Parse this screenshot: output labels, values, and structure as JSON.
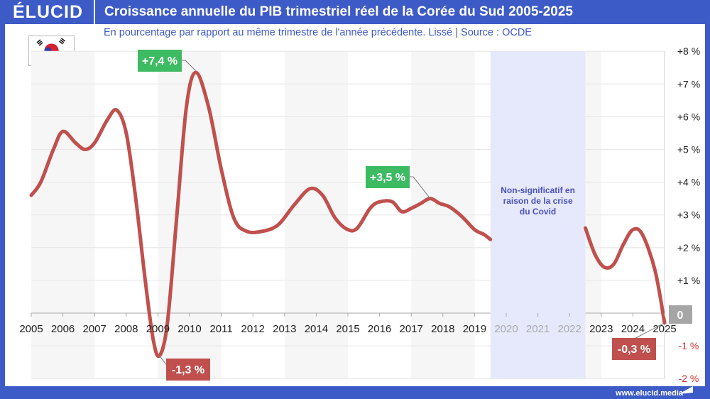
{
  "header": {
    "logo": "ÉLUCID",
    "title": "Croissance annuelle du PIB trimestriel réel de la Corée du Sud 2005-2025"
  },
  "subtitle": "En pourcentage par rapport au même trimestre de l'année précédente. Lissé  |  Source : OCDE",
  "footer": "www.elucid.media",
  "colors": {
    "brand": "#3d5bc7",
    "line": "#c0504d",
    "positive": "#3dbb63",
    "negative": "#c0504d",
    "covid": "#e6e8fb"
  },
  "chart_data": {
    "type": "line",
    "title": "Croissance annuelle du PIB trimestriel réel de la Corée du Sud 2005-2025",
    "xlim": [
      2005,
      2025
    ],
    "ylim": [
      -2,
      8
    ],
    "x_ticks": [
      "2005",
      "2006",
      "2007",
      "2008",
      "2009",
      "2010",
      "2011",
      "2012",
      "2013",
      "2014",
      "2015",
      "2016",
      "2017",
      "2018",
      "2019",
      "2020",
      "2021",
      "2022",
      "2023",
      "2024",
      "2025"
    ],
    "y_ticks": [
      {
        "v": 8,
        "label": "+8 %"
      },
      {
        "v": 7,
        "label": "+7 %"
      },
      {
        "v": 6,
        "label": "+6 %"
      },
      {
        "v": 5,
        "label": "+5 %"
      },
      {
        "v": 4,
        "label": "+4 %"
      },
      {
        "v": 3,
        "label": "+3 %"
      },
      {
        "v": 2,
        "label": "+2 %"
      },
      {
        "v": 1,
        "label": "+1 %"
      },
      {
        "v": 0,
        "label": "0"
      },
      {
        "v": -1,
        "label": "-1 %"
      },
      {
        "v": -2,
        "label": "-2 %"
      }
    ],
    "covid_band": {
      "from": 2019.5,
      "to": 2022.5,
      "label": [
        "Non-significatif en",
        "raison de la crise",
        "du Covid"
      ]
    },
    "series": [
      {
        "name": "2005-2019",
        "points": [
          [
            2005,
            3.6
          ],
          [
            2005.3,
            4.0
          ],
          [
            2005.7,
            5.0
          ],
          [
            2006,
            5.55
          ],
          [
            2006.4,
            5.2
          ],
          [
            2006.7,
            5.0
          ],
          [
            2007,
            5.2
          ],
          [
            2007.4,
            5.9
          ],
          [
            2007.7,
            6.2
          ],
          [
            2008,
            5.5
          ],
          [
            2008.3,
            3.5
          ],
          [
            2008.6,
            1.0
          ],
          [
            2008.85,
            -0.8
          ],
          [
            2009.05,
            -1.3
          ],
          [
            2009.3,
            -0.3
          ],
          [
            2009.6,
            3.0
          ],
          [
            2009.9,
            6.3
          ],
          [
            2010.2,
            7.35
          ],
          [
            2010.6,
            6.3
          ],
          [
            2011,
            4.4
          ],
          [
            2011.4,
            2.9
          ],
          [
            2011.8,
            2.5
          ],
          [
            2012.3,
            2.5
          ],
          [
            2012.8,
            2.7
          ],
          [
            2013.3,
            3.3
          ],
          [
            2013.8,
            3.8
          ],
          [
            2014.2,
            3.6
          ],
          [
            2014.6,
            2.9
          ],
          [
            2015,
            2.55
          ],
          [
            2015.3,
            2.6
          ],
          [
            2015.7,
            3.2
          ],
          [
            2016,
            3.4
          ],
          [
            2016.4,
            3.4
          ],
          [
            2016.7,
            3.1
          ],
          [
            2017,
            3.2
          ],
          [
            2017.3,
            3.35
          ],
          [
            2017.6,
            3.5
          ],
          [
            2017.9,
            3.35
          ],
          [
            2018.2,
            3.25
          ],
          [
            2018.6,
            2.95
          ],
          [
            2019,
            2.55
          ],
          [
            2019.3,
            2.4
          ],
          [
            2019.5,
            2.25
          ]
        ]
      },
      {
        "name": "2022-2025",
        "points": [
          [
            2022.5,
            2.6
          ],
          [
            2022.8,
            1.8
          ],
          [
            2023.1,
            1.4
          ],
          [
            2023.4,
            1.5
          ],
          [
            2023.7,
            2.1
          ],
          [
            2024,
            2.55
          ],
          [
            2024.3,
            2.4
          ],
          [
            2024.7,
            1.3
          ],
          [
            2025,
            -0.3
          ]
        ]
      }
    ],
    "annotations": [
      {
        "label": "+7,4 %",
        "x": 2010.2,
        "y": 7.4,
        "type": "positive"
      },
      {
        "label": "-1,3 %",
        "x": 2009.05,
        "y": -1.3,
        "type": "negative"
      },
      {
        "label": "+3,5 %",
        "x": 2017.6,
        "y": 3.5,
        "type": "positive"
      },
      {
        "label": "-0,3 %",
        "x": 2025,
        "y": -0.3,
        "type": "negative"
      }
    ]
  }
}
